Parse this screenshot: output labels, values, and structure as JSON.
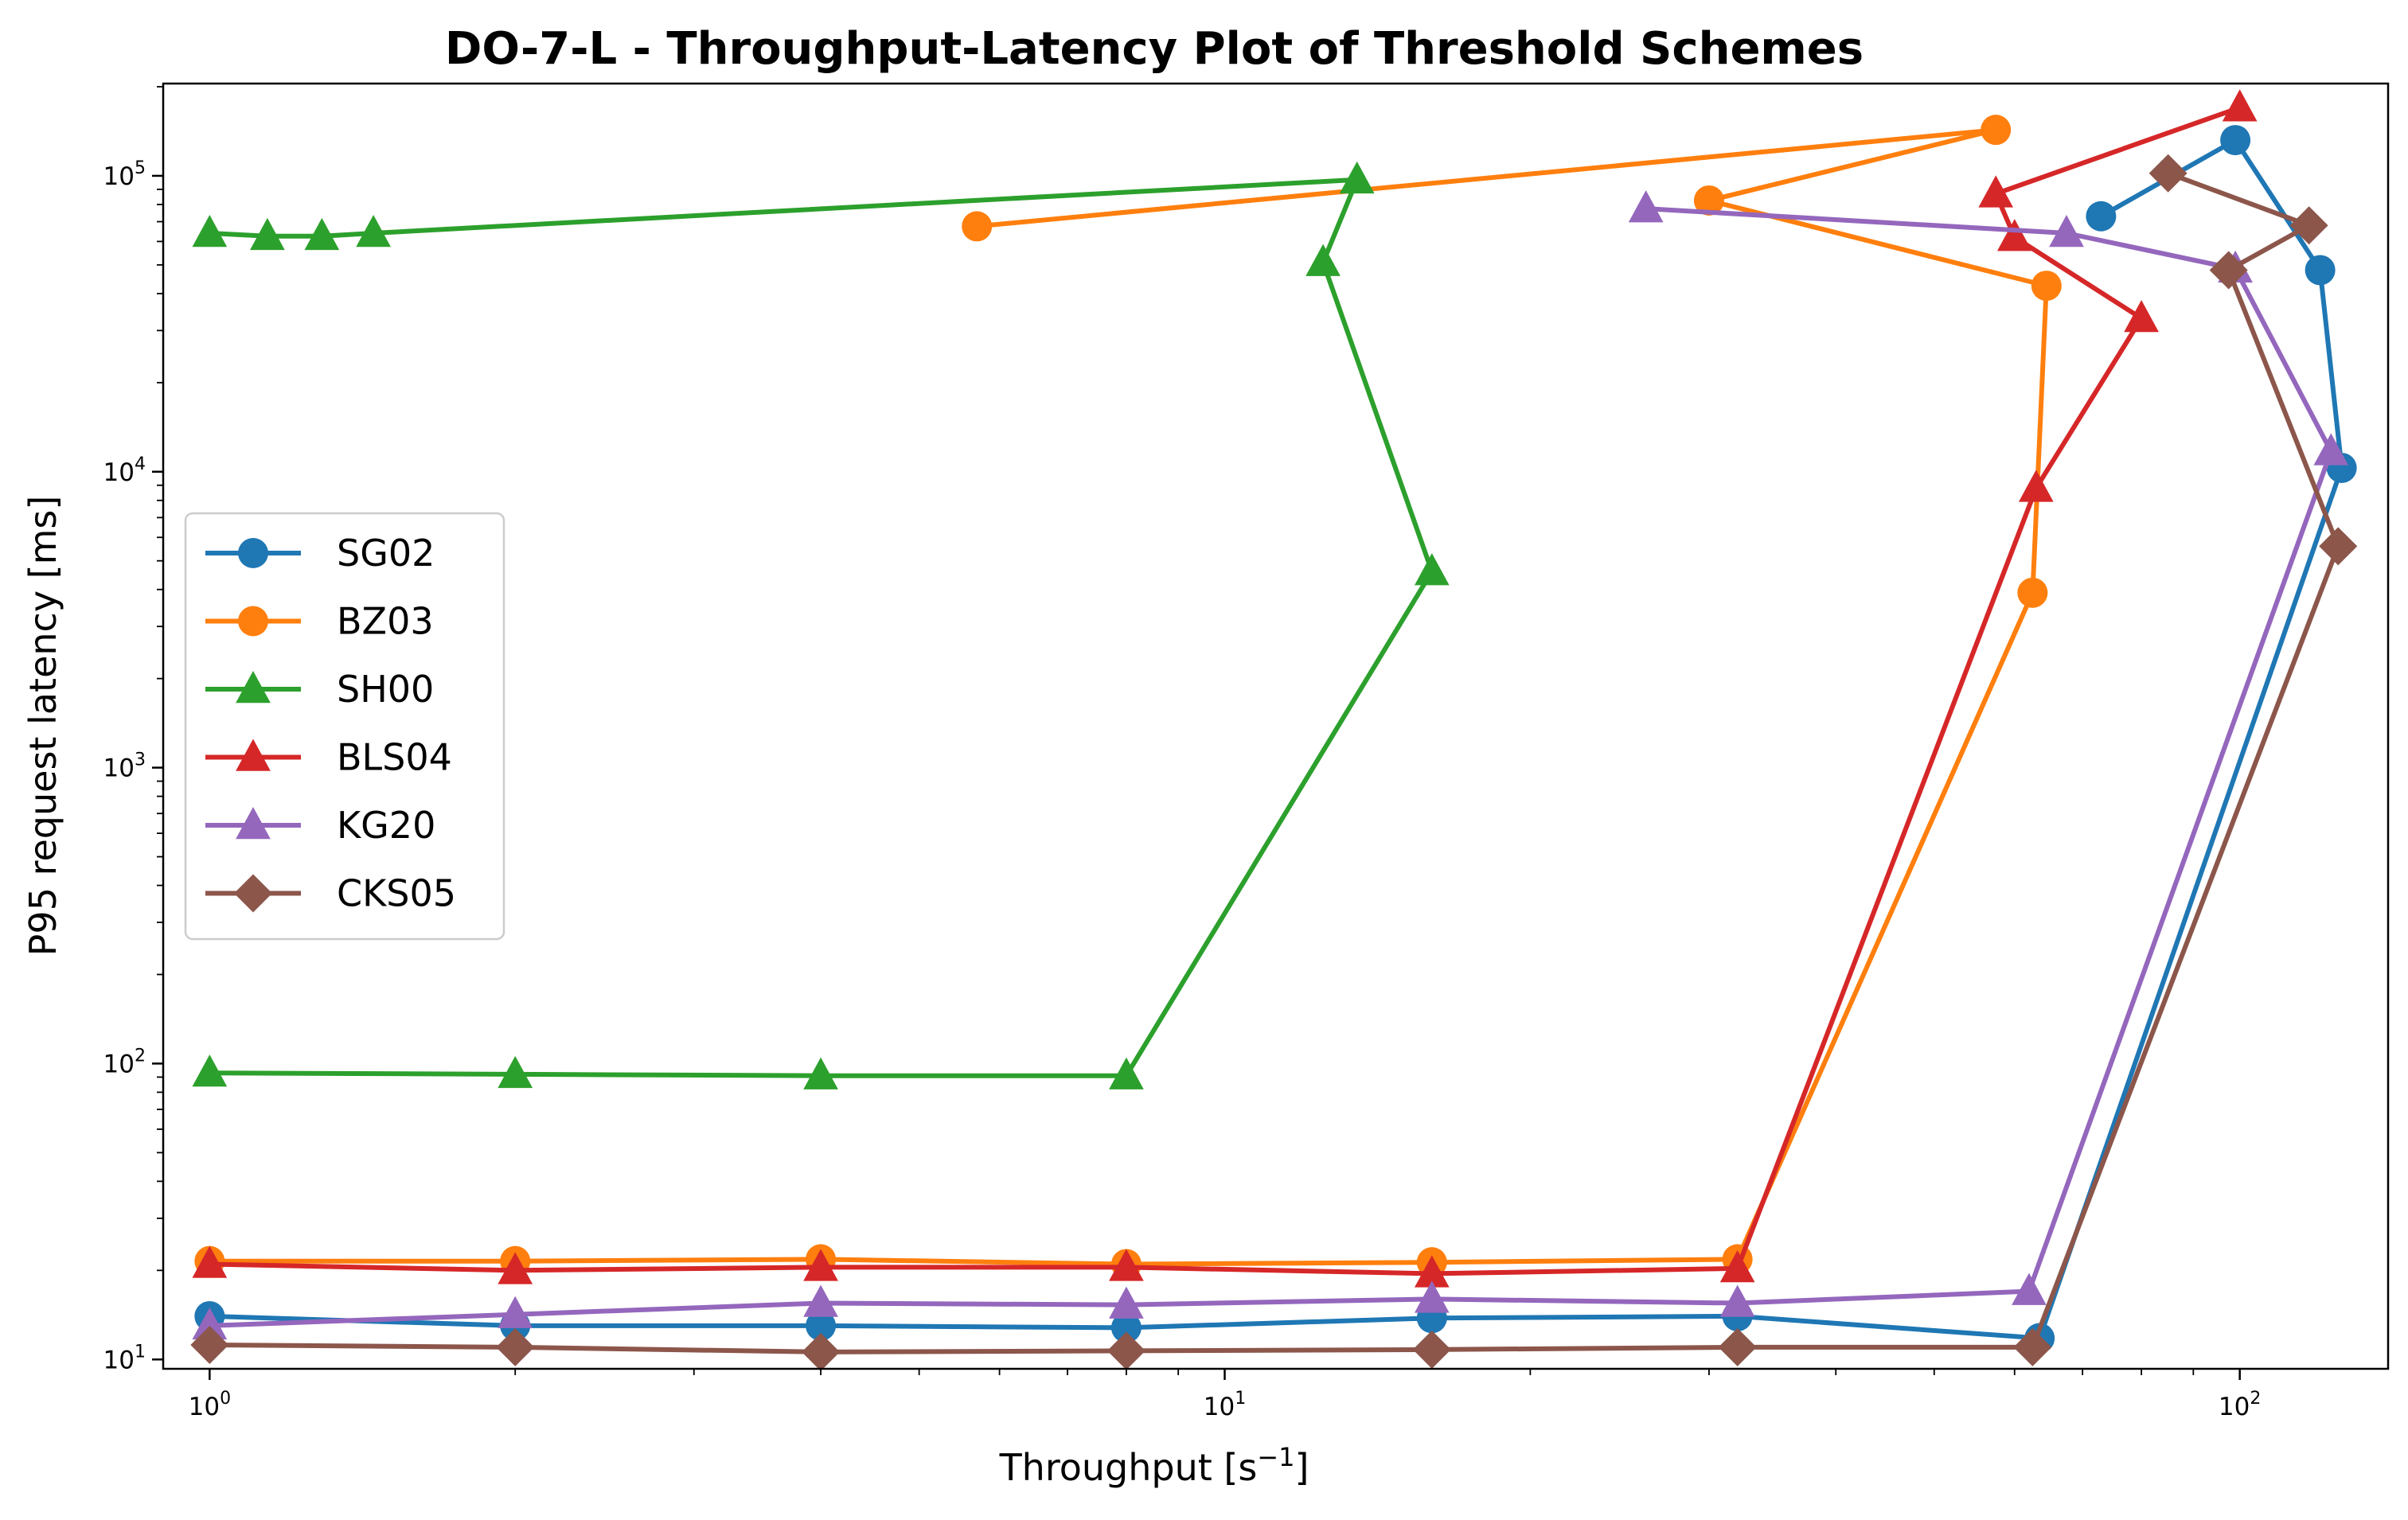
{
  "chart_data": {
    "type": "line",
    "title": "DO-7-L - Throughput-Latency Plot of Threshold Schemes",
    "xlabel": "Throughput [s",
    "xlabel_sup": "−1",
    "xlabel_close": "]",
    "ylabel": "P95 request latency [ms]",
    "xscale": "log",
    "yscale": "log",
    "xlim": [
      0.9,
      140
    ],
    "ylim": [
      9.3,
      205000
    ],
    "x_ticks": [
      {
        "value": 1,
        "base": "10",
        "exp": "0"
      },
      {
        "value": 10,
        "base": "10",
        "exp": "1"
      },
      {
        "value": 100,
        "base": "10",
        "exp": "2"
      }
    ],
    "y_ticks": [
      {
        "value": 10,
        "base": "10",
        "exp": "1"
      },
      {
        "value": 100,
        "base": "10",
        "exp": "2"
      },
      {
        "value": 1000,
        "base": "10",
        "exp": "3"
      },
      {
        "value": 10000,
        "base": "10",
        "exp": "4"
      },
      {
        "value": 100000,
        "base": "10",
        "exp": "5"
      }
    ],
    "grid": false,
    "legend_position": "center-left",
    "series": [
      {
        "name": "SG02",
        "color": "#1f77b4",
        "marker": "circle",
        "x": [
          1,
          2,
          4,
          8,
          16,
          32,
          63.5,
          126,
          120,
          99,
          73
        ],
        "y": [
          14,
          13,
          13,
          12.8,
          13.8,
          14,
          11.8,
          10300,
          48000,
          132000,
          73000
        ]
      },
      {
        "name": "BZ03",
        "color": "#ff7f0e",
        "marker": "circle",
        "x": [
          1,
          2,
          4,
          8,
          16,
          32,
          62.5,
          64.5,
          30,
          57.5,
          5.7
        ],
        "y": [
          21.5,
          21.5,
          21.8,
          21,
          21.3,
          21.8,
          3900,
          42500,
          82500,
          143000,
          67500
        ]
      },
      {
        "name": "SH00",
        "color": "#2ca02c",
        "marker": "triangle",
        "x": [
          1,
          2,
          4,
          8,
          16,
          12.5,
          13.5,
          1.45,
          1.29,
          1.14,
          1
        ],
        "y": [
          93,
          92,
          91,
          91,
          4600,
          51000,
          97000,
          64000,
          62500,
          62500,
          64000
        ]
      },
      {
        "name": "BLS04",
        "color": "#d62728",
        "marker": "triangle",
        "x": [
          1,
          2,
          4,
          8,
          16,
          32,
          63,
          80,
          60,
          57.5,
          100
        ],
        "y": [
          21,
          20,
          20.5,
          20.5,
          19.5,
          20.3,
          8800,
          33000,
          62000,
          87000,
          170000
        ]
      },
      {
        "name": "KG20",
        "color": "#9467bd",
        "marker": "triangle",
        "x": [
          1,
          2,
          4,
          8,
          16,
          32,
          62,
          123,
          99,
          67.5,
          26
        ],
        "y": [
          13,
          14.2,
          15.5,
          15.3,
          16,
          15.5,
          17,
          11700,
          48500,
          64000,
          77500
        ]
      },
      {
        "name": "CKS05",
        "color": "#8c564b",
        "marker": "diamond",
        "x": [
          1,
          2,
          4,
          8,
          16,
          32,
          62.5,
          125,
          97.5,
          117,
          85
        ],
        "y": [
          11.2,
          11,
          10.6,
          10.7,
          10.8,
          11,
          11,
          5600,
          48000,
          68000,
          102000
        ]
      }
    ]
  }
}
